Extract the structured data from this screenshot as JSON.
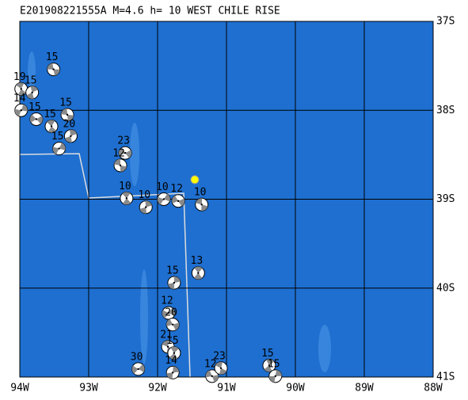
{
  "title": "E201908221555A  M=4.6  h= 10 WEST CHILE RISE",
  "lon_range": [
    -94,
    -88
  ],
  "lat_range": [
    -41,
    -37
  ],
  "lon_ticks": [
    {
      "value": -94,
      "label": "94W"
    },
    {
      "value": -93,
      "label": "93W"
    },
    {
      "value": -92,
      "label": "92W"
    },
    {
      "value": -91,
      "label": "91W"
    },
    {
      "value": -90,
      "label": "90W"
    },
    {
      "value": -89,
      "label": "89W"
    },
    {
      "value": -88,
      "label": "88W"
    }
  ],
  "lat_ticks": [
    {
      "value": -37,
      "label": "37S"
    },
    {
      "value": -38,
      "label": "38S"
    },
    {
      "value": -39,
      "label": "39S"
    },
    {
      "value": -40,
      "label": "40S"
    },
    {
      "value": -41,
      "label": "41S"
    }
  ],
  "epicenter": {
    "lon": -91.46,
    "lat": -38.78
  },
  "events": [
    {
      "lon": -93.51,
      "lat": -37.54,
      "depth": 15
    },
    {
      "lon": -93.98,
      "lat": -37.76,
      "depth": 19
    },
    {
      "lon": -93.82,
      "lat": -37.8,
      "depth": 15
    },
    {
      "lon": -93.98,
      "lat": -38.0,
      "depth": 14
    },
    {
      "lon": -93.76,
      "lat": -38.1,
      "depth": 15
    },
    {
      "lon": -93.31,
      "lat": -38.05,
      "depth": 15
    },
    {
      "lon": -93.54,
      "lat": -38.18,
      "depth": 15
    },
    {
      "lon": -93.26,
      "lat": -38.29,
      "depth": 20
    },
    {
      "lon": -93.43,
      "lat": -38.43,
      "depth": 15
    },
    {
      "lon": -92.47,
      "lat": -38.48,
      "depth": 23
    },
    {
      "lon": -92.54,
      "lat": -38.62,
      "depth": 12
    },
    {
      "lon": -92.45,
      "lat": -38.99,
      "depth": 10
    },
    {
      "lon": -92.17,
      "lat": -39.09,
      "depth": 10
    },
    {
      "lon": -91.91,
      "lat": -39.0,
      "depth": 10
    },
    {
      "lon": -91.7,
      "lat": -39.02,
      "depth": 12
    },
    {
      "lon": -91.36,
      "lat": -39.06,
      "depth": 10
    },
    {
      "lon": -91.41,
      "lat": -39.83,
      "depth": 13
    },
    {
      "lon": -91.76,
      "lat": -39.94,
      "depth": 15
    },
    {
      "lon": -91.84,
      "lat": -40.28,
      "depth": 12
    },
    {
      "lon": -91.78,
      "lat": -40.41,
      "depth": 20
    },
    {
      "lon": -91.85,
      "lat": -40.66,
      "depth": 21
    },
    {
      "lon": -91.76,
      "lat": -40.73,
      "depth": 15
    },
    {
      "lon": -91.78,
      "lat": -40.95,
      "depth": 14
    },
    {
      "lon": -92.28,
      "lat": -40.91,
      "depth": 30
    },
    {
      "lon": -91.21,
      "lat": -40.99,
      "depth": 12
    },
    {
      "lon": -91.08,
      "lat": -40.9,
      "depth": 23
    },
    {
      "lon": -90.38,
      "lat": -40.87,
      "depth": 15
    },
    {
      "lon": -90.29,
      "lat": -40.99,
      "depth": 15
    }
  ]
}
